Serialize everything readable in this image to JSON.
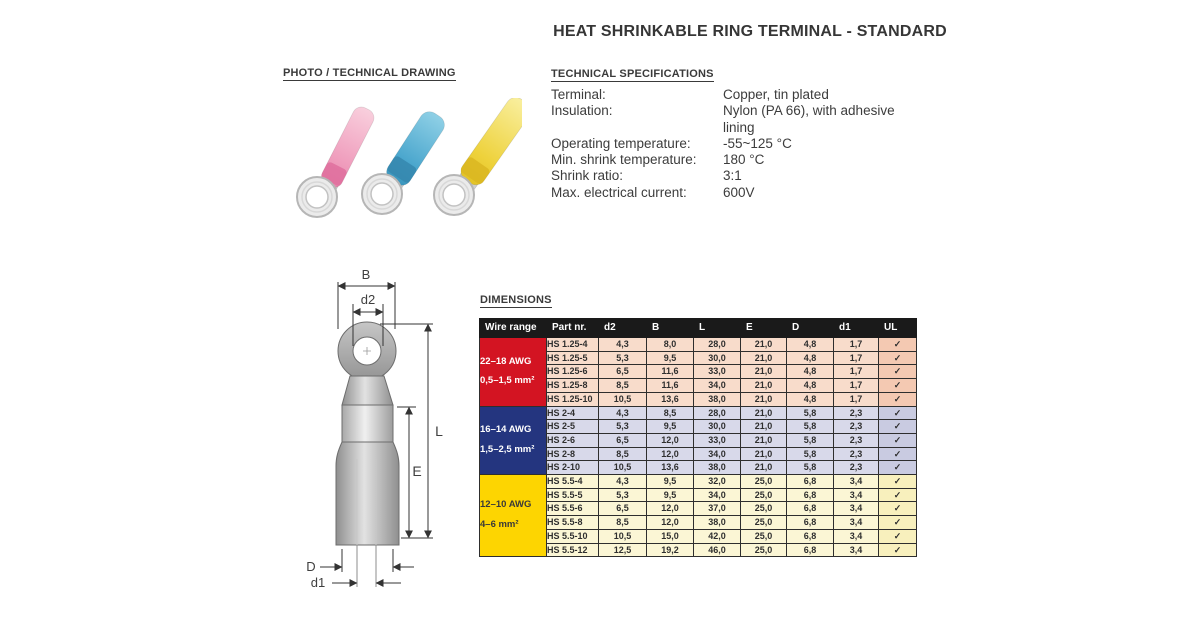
{
  "title": "HEAT SHRINKABLE RING TERMINAL - STANDARD",
  "photo_section": {
    "heading": "PHOTO / TECHNICAL DRAWING"
  },
  "specs": {
    "heading": "TECHNICAL SPECIFICATIONS",
    "rows": [
      {
        "label": "Terminal:",
        "value": "Copper, tin plated"
      },
      {
        "label": "Insulation:",
        "value": "Nylon (PA 66), with adhesive lining"
      },
      {
        "label": "Operating temperature:",
        "value": "-55~125 °C"
      },
      {
        "label": "Min. shrink temperature:",
        "value": "180 °C"
      },
      {
        "label": "Shrink ratio:",
        "value": "3:1"
      },
      {
        "label": "Max. electrical current:",
        "value": "600V"
      }
    ]
  },
  "drawing": {
    "labels": {
      "b": "B",
      "d2": "d2",
      "l": "L",
      "e": "E",
      "d": "D",
      "d1": "d1"
    }
  },
  "dimensions": {
    "heading": "DIMENSIONS",
    "columns": [
      "Wire range",
      "Part nr.",
      "d2",
      "B",
      "L",
      "E",
      "D",
      "d1",
      "UL"
    ],
    "ul_check": "✓",
    "groups": [
      {
        "wire_range": [
          "22–18 AWG",
          "0,5–1,5 mm²"
        ],
        "label_bg": "#d31422",
        "label_color": "#ffffff",
        "row_bg": "#f8dccb",
        "ul_bg": "#f4c9b2",
        "rows": [
          {
            "part": "HS 1.25-4",
            "d2": "4,3",
            "b": "8,0",
            "l": "28,0",
            "e": "21,0",
            "d": "4,8",
            "d1": "1,7",
            "ul": true
          },
          {
            "part": "HS 1.25-5",
            "d2": "5,3",
            "b": "9,5",
            "l": "30,0",
            "e": "21,0",
            "d": "4,8",
            "d1": "1,7",
            "ul": true
          },
          {
            "part": "HS 1.25-6",
            "d2": "6,5",
            "b": "11,6",
            "l": "33,0",
            "e": "21,0",
            "d": "4,8",
            "d1": "1,7",
            "ul": true
          },
          {
            "part": "HS 1.25-8",
            "d2": "8,5",
            "b": "11,6",
            "l": "34,0",
            "e": "21,0",
            "d": "4,8",
            "d1": "1,7",
            "ul": true
          },
          {
            "part": "HS 1.25-10",
            "d2": "10,5",
            "b": "13,6",
            "l": "38,0",
            "e": "21,0",
            "d": "4,8",
            "d1": "1,7",
            "ul": true
          }
        ]
      },
      {
        "wire_range": [
          "16–14 AWG",
          "1,5–2,5 mm²"
        ],
        "label_bg": "#24357f",
        "label_color": "#ffffff",
        "row_bg": "#d8d9ea",
        "ul_bg": "#c9cbe1",
        "rows": [
          {
            "part": "HS 2-4",
            "d2": "4,3",
            "b": "8,5",
            "l": "28,0",
            "e": "21,0",
            "d": "5,8",
            "d1": "2,3",
            "ul": true
          },
          {
            "part": "HS 2-5",
            "d2": "5,3",
            "b": "9,5",
            "l": "30,0",
            "e": "21,0",
            "d": "5,8",
            "d1": "2,3",
            "ul": true
          },
          {
            "part": "HS 2-6",
            "d2": "6,5",
            "b": "12,0",
            "l": "33,0",
            "e": "21,0",
            "d": "5,8",
            "d1": "2,3",
            "ul": true
          },
          {
            "part": "HS 2-8",
            "d2": "8,5",
            "b": "12,0",
            "l": "34,0",
            "e": "21,0",
            "d": "5,8",
            "d1": "2,3",
            "ul": true
          },
          {
            "part": "HS 2-10",
            "d2": "10,5",
            "b": "13,6",
            "l": "38,0",
            "e": "21,0",
            "d": "5,8",
            "d1": "2,3",
            "ul": true
          }
        ]
      },
      {
        "wire_range": [
          "12–10 AWG",
          "4–6 mm²"
        ],
        "label_bg": "#fdd501",
        "label_color": "#393939",
        "row_bg": "#fbf6d5",
        "ul_bg": "#f8f0bd",
        "rows": [
          {
            "part": "HS 5.5-4",
            "d2": "4,3",
            "b": "9,5",
            "l": "32,0",
            "e": "25,0",
            "d": "6,8",
            "d1": "3,4",
            "ul": true
          },
          {
            "part": "HS 5.5-5",
            "d2": "5,3",
            "b": "9,5",
            "l": "34,0",
            "e": "25,0",
            "d": "6,8",
            "d1": "3,4",
            "ul": true
          },
          {
            "part": "HS 5.5-6",
            "d2": "6,5",
            "b": "12,0",
            "l": "37,0",
            "e": "25,0",
            "d": "6,8",
            "d1": "3,4",
            "ul": true
          },
          {
            "part": "HS 5.5-8",
            "d2": "8,5",
            "b": "12,0",
            "l": "38,0",
            "e": "25,0",
            "d": "6,8",
            "d1": "3,4",
            "ul": true
          },
          {
            "part": "HS 5.5-10",
            "d2": "10,5",
            "b": "15,0",
            "l": "42,0",
            "e": "25,0",
            "d": "6,8",
            "d1": "3,4",
            "ul": true
          },
          {
            "part": "HS 5.5-12",
            "d2": "12,5",
            "b": "19,2",
            "l": "46,0",
            "e": "25,0",
            "d": "6,8",
            "d1": "3,4",
            "ul": true
          }
        ]
      }
    ]
  }
}
